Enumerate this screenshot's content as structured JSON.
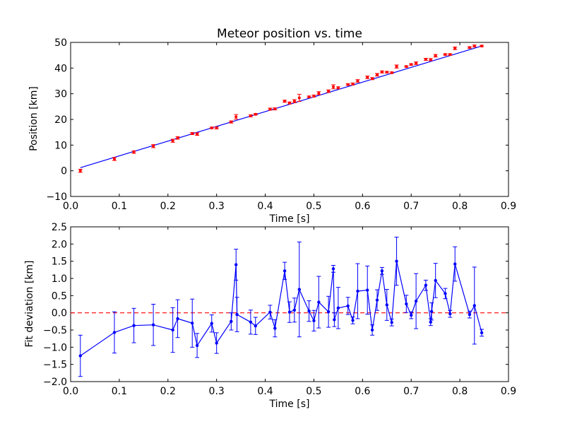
{
  "colors": {
    "fit_line": "#0000ff",
    "data_points": "#ff0000",
    "zero_line": "#ff0000",
    "deviation": "#0000ff"
  },
  "chart_data": [
    {
      "type": "scatter",
      "title": "Meteor position vs. time",
      "xlabel": "Time [s]",
      "ylabel": "Position [km]",
      "xlim": [
        0.0,
        0.9
      ],
      "ylim": [
        -10,
        50
      ],
      "xticks": [
        "0.0",
        "0.1",
        "0.2",
        "0.3",
        "0.4",
        "0.5",
        "0.6",
        "0.7",
        "0.8",
        "0.9"
      ],
      "xtick_values": [
        0.0,
        0.1,
        0.2,
        0.3,
        0.4,
        0.5,
        0.6,
        0.7,
        0.8,
        0.9
      ],
      "yticks": [
        "−10",
        "0",
        "10",
        "20",
        "30",
        "40",
        "50"
      ],
      "ytick_values": [
        -10,
        0,
        10,
        20,
        30,
        40,
        50
      ],
      "grid": false,
      "fit_line": {
        "x": [
          0.02,
          0.845
        ],
        "y": [
          1.2,
          48.6
        ]
      },
      "points": {
        "x": [
          0.02,
          0.09,
          0.13,
          0.17,
          0.21,
          0.22,
          0.25,
          0.26,
          0.29,
          0.3,
          0.33,
          0.34,
          0.37,
          0.38,
          0.41,
          0.42,
          0.44,
          0.45,
          0.46,
          0.47,
          0.49,
          0.5,
          0.51,
          0.53,
          0.54,
          0.55,
          0.57,
          0.58,
          0.59,
          0.61,
          0.62,
          0.63,
          0.64,
          0.65,
          0.66,
          0.67,
          0.69,
          0.7,
          0.71,
          0.73,
          0.74,
          0.75,
          0.77,
          0.78,
          0.79,
          0.82,
          0.83,
          0.845
        ],
        "y": [
          0.0,
          4.6,
          7.3,
          9.6,
          11.7,
          12.8,
          14.5,
          14.3,
          16.7,
          16.7,
          19.0,
          21.0,
          21.4,
          22.0,
          24.0,
          24.1,
          27.1,
          26.4,
          27.1,
          28.4,
          28.8,
          29.1,
          30.2,
          31.0,
          32.7,
          32.3,
          33.6,
          33.8,
          35.0,
          36.4,
          35.9,
          37.4,
          38.5,
          38.4,
          38.2,
          40.6,
          40.6,
          41.4,
          41.9,
          43.4,
          43.3,
          44.8,
          45.3,
          45.3,
          47.7,
          48.0,
          48.6,
          48.6
        ],
        "err": [
          0.6,
          0.6,
          0.5,
          0.6,
          0.6,
          0.5,
          0.4,
          0.5,
          0.3,
          0.4,
          0.4,
          0.9,
          0.4,
          0.3,
          0.4,
          0.4,
          0.4,
          0.4,
          0.6,
          1.4,
          0.3,
          0.4,
          0.6,
          0.5,
          0.8,
          0.4,
          0.3,
          0.4,
          0.5,
          0.5,
          0.4,
          0.5,
          0.4,
          0.3,
          0.3,
          0.6,
          0.3,
          0.3,
          0.5,
          0.4,
          0.4,
          0.5,
          0.3,
          0.3,
          0.5,
          0.3,
          0.4,
          0.3
        ]
      }
    },
    {
      "type": "line",
      "xlabel": "Time [s]",
      "ylabel": "Fit deviation [km]",
      "xlim": [
        0.0,
        0.9
      ],
      "ylim": [
        -2.0,
        2.5
      ],
      "xticks": [
        "0.0",
        "0.1",
        "0.2",
        "0.3",
        "0.4",
        "0.5",
        "0.6",
        "0.7",
        "0.8",
        "0.9"
      ],
      "xtick_values": [
        0.0,
        0.1,
        0.2,
        0.3,
        0.4,
        0.5,
        0.6,
        0.7,
        0.8,
        0.9
      ],
      "yticks": [
        "−2.0",
        "−1.5",
        "−1.0",
        "−0.5",
        "0.0",
        "0.5",
        "1.0",
        "1.5",
        "2.0",
        "2.5"
      ],
      "ytick_values": [
        -2.0,
        -1.5,
        -1.0,
        -0.5,
        0.0,
        0.5,
        1.0,
        1.5,
        2.0,
        2.5
      ],
      "grid": false,
      "zero_line": 0.0,
      "series": {
        "x": [
          0.02,
          0.09,
          0.13,
          0.17,
          0.21,
          0.22,
          0.25,
          0.26,
          0.29,
          0.3,
          0.33,
          0.34,
          0.342,
          0.37,
          0.38,
          0.41,
          0.42,
          0.44,
          0.45,
          0.46,
          0.47,
          0.49,
          0.5,
          0.51,
          0.53,
          0.54,
          0.542,
          0.55,
          0.57,
          0.58,
          0.59,
          0.61,
          0.62,
          0.63,
          0.64,
          0.65,
          0.66,
          0.67,
          0.69,
          0.7,
          0.71,
          0.73,
          0.74,
          0.742,
          0.75,
          0.77,
          0.78,
          0.79,
          0.82,
          0.83,
          0.845
        ],
        "y": [
          -1.25,
          -0.57,
          -0.37,
          -0.35,
          -0.5,
          -0.17,
          -0.3,
          -0.95,
          -0.31,
          -0.88,
          -0.25,
          1.4,
          -0.05,
          -0.27,
          -0.38,
          0.02,
          -0.45,
          1.22,
          0.02,
          0.08,
          0.68,
          0.05,
          -0.23,
          0.31,
          0.03,
          1.28,
          -0.2,
          0.14,
          0.2,
          -0.22,
          0.63,
          0.66,
          -0.5,
          0.37,
          1.22,
          0.23,
          -0.28,
          1.5,
          0.26,
          -0.07,
          0.34,
          0.8,
          -0.27,
          0.04,
          0.94,
          0.56,
          -0.03,
          1.42,
          -0.05,
          0.21,
          -0.58
        ],
        "err": [
          0.6,
          0.6,
          0.5,
          0.6,
          0.65,
          0.55,
          0.7,
          0.35,
          0.25,
          0.3,
          0.25,
          0.45,
          0.5,
          0.35,
          0.25,
          0.2,
          0.25,
          0.25,
          0.3,
          0.35,
          1.38,
          0.3,
          0.3,
          0.75,
          0.45,
          0.1,
          0.2,
          0.6,
          0.25,
          0.1,
          0.8,
          0.7,
          0.15,
          0.3,
          0.1,
          0.45,
          0.1,
          0.7,
          0.25,
          0.1,
          0.8,
          0.15,
          0.1,
          0.25,
          0.5,
          0.15,
          0.1,
          0.5,
          0.1,
          1.12,
          0.1
        ]
      }
    }
  ]
}
